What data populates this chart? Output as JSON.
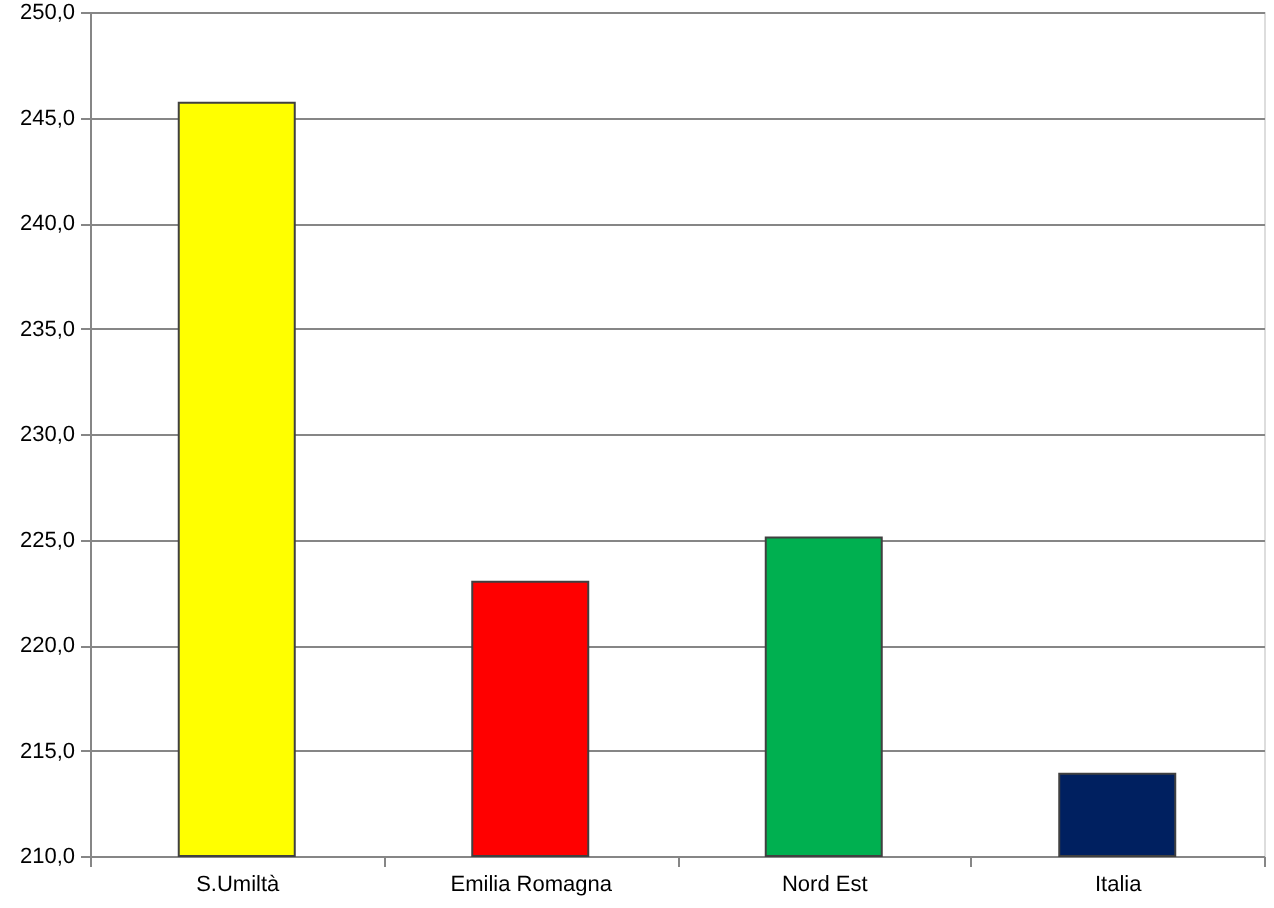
{
  "chart_data": {
    "type": "bar",
    "categories": [
      "S.Umiltà",
      "Emilia Romagna",
      "Nord Est",
      "Italia"
    ],
    "values": [
      245.7,
      223.0,
      225.1,
      213.9
    ],
    "colors": [
      "#ffff00",
      "#ff0000",
      "#00b050",
      "#002060"
    ],
    "ylim": [
      210,
      250
    ],
    "yticks": [
      {
        "value": 210,
        "label": "210,0"
      },
      {
        "value": 215,
        "label": "215,0"
      },
      {
        "value": 220,
        "label": "220,0"
      },
      {
        "value": 225,
        "label": "225,0"
      },
      {
        "value": 230,
        "label": "230,0"
      },
      {
        "value": 235,
        "label": "235,0"
      },
      {
        "value": 240,
        "label": "240,0"
      },
      {
        "value": 245,
        "label": "245,0"
      },
      {
        "value": 250,
        "label": "250,0"
      }
    ],
    "grid": "y"
  }
}
